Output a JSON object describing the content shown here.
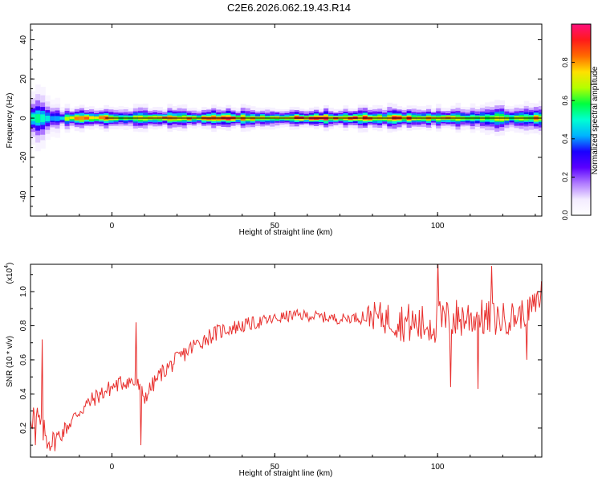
{
  "title": "C2E6.2026.062.19.43.R14",
  "colors": {
    "line": "#e8302e",
    "axis": "#000000",
    "zero_line": "#000000",
    "colormap": [
      "#ffffff",
      "#f3ebff",
      "#b07bff",
      "#5a00ff",
      "#1a00ff",
      "#00b4ff",
      "#00ffd2",
      "#00ff40",
      "#b4ff00",
      "#ffe000",
      "#ff6a00",
      "#ff1a1a",
      "#ff0f7d"
    ]
  },
  "chart_data": [
    {
      "type": "heatmap",
      "name": "spectrogram",
      "xlabel": "Height of straight line (km)",
      "ylabel": "Frequency (Hz)",
      "xlim": [
        -25,
        132
      ],
      "ylim": [
        -50,
        48
      ],
      "xticks": [
        0,
        50,
        100
      ],
      "yticks": [
        -40,
        -20,
        0,
        20,
        40
      ],
      "zero_line_y": 0,
      "band": [
        [
          -24,
          0.55,
          6.5
        ],
        [
          -22,
          0.62,
          6
        ],
        [
          -20,
          0.55,
          5
        ],
        [
          -18,
          0.45,
          4
        ],
        [
          -16,
          0.5,
          3
        ],
        [
          -14,
          0.85,
          2.5
        ],
        [
          -10,
          0.9,
          2.5
        ],
        [
          -6,
          0.92,
          2.5
        ],
        [
          -3,
          0.95,
          2.5
        ],
        [
          0,
          0.75,
          2.5
        ],
        [
          3,
          0.7,
          2.5
        ],
        [
          6,
          0.8,
          3
        ],
        [
          8,
          0.9,
          3.5
        ],
        [
          10,
          0.78,
          3
        ],
        [
          14,
          0.82,
          2.5
        ],
        [
          18,
          0.85,
          2.5
        ],
        [
          22,
          0.9,
          2.5
        ],
        [
          26,
          0.85,
          2.5
        ],
        [
          30,
          0.9,
          2.5
        ],
        [
          34,
          0.92,
          2.5
        ],
        [
          38,
          0.9,
          2.5
        ],
        [
          42,
          0.88,
          2.5
        ],
        [
          46,
          0.8,
          2.5
        ],
        [
          50,
          0.75,
          2.5
        ],
        [
          54,
          0.85,
          2.5
        ],
        [
          58,
          0.92,
          2.5
        ],
        [
          62,
          0.96,
          2.5
        ],
        [
          66,
          0.97,
          2.5
        ],
        [
          70,
          0.96,
          2.5
        ],
        [
          74,
          0.95,
          2.5
        ],
        [
          78,
          0.9,
          3
        ],
        [
          82,
          0.82,
          3
        ],
        [
          86,
          0.88,
          2.5
        ],
        [
          90,
          0.9,
          2.5
        ],
        [
          94,
          0.85,
          2.5
        ],
        [
          98,
          0.75,
          2.5
        ],
        [
          102,
          0.8,
          2.5
        ],
        [
          106,
          0.72,
          3
        ],
        [
          110,
          0.7,
          3
        ],
        [
          114,
          0.75,
          3
        ],
        [
          118,
          0.8,
          3.5
        ],
        [
          122,
          0.72,
          3.5
        ],
        [
          126,
          0.7,
          3.5
        ],
        [
          130,
          0.82,
          3.5
        ]
      ],
      "colorbar": {
        "label": "Normalized spectral amplitude",
        "ticks": [
          "0.0",
          "0.2",
          "0.4",
          "0.6",
          "0.8"
        ],
        "tick_values": [
          0,
          0.2,
          0.4,
          0.6,
          0.8
        ],
        "range": [
          0,
          1
        ]
      }
    },
    {
      "type": "line",
      "name": "snr",
      "xlabel": "Height of straight line (km)",
      "ylabel": "SNR (10 * v/v)",
      "exponent_label": "(x10",
      "exponent_power": "4",
      "exponent_close": ")",
      "xlim": [
        -25,
        132
      ],
      "ylim": [
        0.03,
        1.16
      ],
      "xticks": [
        0,
        50,
        100
      ],
      "yticks": [
        0.2,
        0.4,
        0.6,
        0.8,
        1.0
      ],
      "ytick_labels": [
        "0.2",
        "0.4",
        "0.6",
        "0.8",
        "1.0"
      ],
      "trend": [
        [
          -25,
          0.3
        ],
        [
          -22,
          0.22
        ],
        [
          -20,
          0.14
        ],
        [
          -18,
          0.12
        ],
        [
          -15,
          0.18
        ],
        [
          -10,
          0.3
        ],
        [
          -5,
          0.38
        ],
        [
          0,
          0.44
        ],
        [
          5,
          0.48
        ],
        [
          8,
          0.45
        ],
        [
          10,
          0.38
        ],
        [
          15,
          0.52
        ],
        [
          20,
          0.6
        ],
        [
          25,
          0.68
        ],
        [
          30,
          0.74
        ],
        [
          35,
          0.78
        ],
        [
          40,
          0.8
        ],
        [
          45,
          0.82
        ],
        [
          50,
          0.84
        ],
        [
          55,
          0.86
        ],
        [
          60,
          0.86
        ],
        [
          65,
          0.85
        ],
        [
          70,
          0.84
        ],
        [
          75,
          0.85
        ],
        [
          80,
          0.86
        ],
        [
          85,
          0.84
        ],
        [
          90,
          0.82
        ],
        [
          95,
          0.8
        ],
        [
          100,
          0.82
        ],
        [
          105,
          0.84
        ],
        [
          110,
          0.85
        ],
        [
          115,
          0.84
        ],
        [
          120,
          0.84
        ],
        [
          125,
          0.86
        ],
        [
          130,
          0.92
        ],
        [
          132,
          0.98
        ]
      ],
      "noise_amplitude": [
        [
          -25,
          0.12
        ],
        [
          -15,
          0.05
        ],
        [
          0,
          0.05
        ],
        [
          15,
          0.05
        ],
        [
          30,
          0.05
        ],
        [
          50,
          0.035
        ],
        [
          75,
          0.03
        ],
        [
          80,
          0.08
        ],
        [
          90,
          0.12
        ],
        [
          100,
          0.13
        ],
        [
          110,
          0.12
        ],
        [
          120,
          0.1
        ],
        [
          132,
          0.08
        ]
      ],
      "spikes": [
        [
          -21.5,
          0.72
        ],
        [
          -23.5,
          0.1
        ],
        [
          7.5,
          0.82
        ],
        [
          9,
          0.1
        ],
        [
          100,
          1.18
        ],
        [
          104,
          0.44
        ],
        [
          112.5,
          0.43
        ],
        [
          116.5,
          1.15
        ],
        [
          127.5,
          0.6
        ],
        [
          132,
          1.06
        ]
      ]
    }
  ]
}
